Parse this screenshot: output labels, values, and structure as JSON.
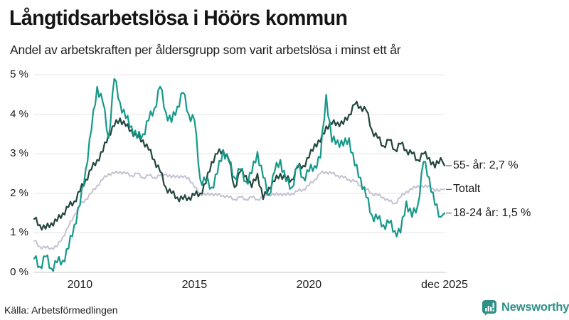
{
  "header": {
    "title": "Långtidsarbetslösa i Höörs kommun",
    "subtitle": "Andel av arbetskraften per åldersgrupp som varit arbetslösa i minst ett år"
  },
  "source": {
    "label": "Källa: Arbetsförmedlingen"
  },
  "branding": {
    "name": "Newsworthy",
    "color": "#2f8f87"
  },
  "chart_data": {
    "type": "line",
    "title": "Långtidsarbetslösa i Höörs kommun",
    "subtitle": "Andel av arbetskraften per åldersgrupp som varit arbetslösa i minst ett år",
    "unit": "%",
    "xlim": [
      2008,
      2025.92
    ],
    "ylim": [
      0,
      5
    ],
    "grid": true,
    "legend_position": "right-end-labels",
    "grid_color": "#e3e3e8",
    "axis_color": "#c6c6cc",
    "y_ticks": [
      {
        "value": 0,
        "label": "0 %"
      },
      {
        "value": 1,
        "label": "1 %"
      },
      {
        "value": 2,
        "label": "2 %"
      },
      {
        "value": 3,
        "label": "3 %"
      },
      {
        "value": 4,
        "label": "4 %"
      },
      {
        "value": 5,
        "label": "5 %"
      }
    ],
    "x_ticks": [
      {
        "t": 2010,
        "label": "2010"
      },
      {
        "t": 2015,
        "label": "2015"
      },
      {
        "t": 2020,
        "label": "2020"
      },
      {
        "t": 2025.92,
        "label": "dec 2025"
      }
    ],
    "x": [
      2008,
      2008.25,
      2008.5,
      2008.75,
      2009,
      2009.25,
      2009.5,
      2009.75,
      2010,
      2010.25,
      2010.5,
      2010.75,
      2011,
      2011.25,
      2011.5,
      2011.75,
      2012,
      2012.25,
      2012.5,
      2012.75,
      2013,
      2013.25,
      2013.5,
      2013.75,
      2014,
      2014.25,
      2014.5,
      2014.75,
      2015,
      2015.25,
      2015.5,
      2015.75,
      2016,
      2016.25,
      2016.5,
      2016.75,
      2017,
      2017.25,
      2017.5,
      2017.75,
      2018,
      2018.25,
      2018.5,
      2018.75,
      2019,
      2019.25,
      2019.5,
      2019.75,
      2020,
      2020.25,
      2020.5,
      2020.75,
      2021,
      2021.25,
      2021.5,
      2021.75,
      2022,
      2022.25,
      2022.5,
      2022.75,
      2023,
      2023.25,
      2023.5,
      2023.75,
      2024,
      2024.25,
      2024.5,
      2024.75,
      2025,
      2025.25,
      2025.5,
      2025.75,
      2025.92
    ],
    "series": [
      {
        "name": "55- år",
        "label": "55- år: 2,7 %",
        "end_value_label": "2,7 %",
        "color": "#22463d",
        "width": 2.2,
        "zindex": 2,
        "volatility_hint": 0.09,
        "values": [
          1.35,
          1.2,
          1.1,
          1.25,
          1.3,
          1.5,
          1.65,
          1.8,
          2.05,
          2.35,
          2.6,
          2.85,
          3.05,
          3.5,
          3.7,
          3.9,
          3.7,
          3.6,
          3.4,
          3.35,
          3.1,
          2.85,
          2.55,
          2.15,
          2.0,
          1.9,
          1.85,
          1.9,
          1.95,
          2.0,
          2.25,
          2.8,
          3.0,
          3.1,
          2.85,
          2.15,
          2.55,
          2.45,
          2.15,
          2.5,
          1.85,
          2.15,
          2.3,
          2.5,
          2.35,
          2.35,
          2.65,
          2.7,
          2.9,
          3.25,
          3.3,
          3.7,
          3.75,
          3.8,
          3.75,
          4.0,
          4.25,
          4.2,
          4.1,
          3.6,
          3.4,
          3.2,
          3.35,
          3.1,
          3.25,
          3.1,
          3.0,
          2.85,
          3.0,
          2.9,
          2.65,
          2.9,
          2.7
        ]
      },
      {
        "name": "Totalt",
        "label": "Totalt",
        "end_value_label": "2,1 %",
        "color": "#c5c2d2",
        "width": 2,
        "zindex": 1,
        "volatility_hint": 0.045,
        "values": [
          0.8,
          0.65,
          0.62,
          0.62,
          0.65,
          0.9,
          1.15,
          1.45,
          1.7,
          1.85,
          2.0,
          2.2,
          2.35,
          2.5,
          2.5,
          2.55,
          2.5,
          2.45,
          2.5,
          2.4,
          2.45,
          2.4,
          2.45,
          2.5,
          2.4,
          2.45,
          2.4,
          2.4,
          2.15,
          2.0,
          1.95,
          2.0,
          1.95,
          1.95,
          1.9,
          1.85,
          1.9,
          1.85,
          1.9,
          1.85,
          1.9,
          2.0,
          1.95,
          2.0,
          1.95,
          2.0,
          2.05,
          2.1,
          2.2,
          2.35,
          2.5,
          2.55,
          2.5,
          2.45,
          2.4,
          2.35,
          2.3,
          2.2,
          2.1,
          2.0,
          1.95,
          1.9,
          1.8,
          1.75,
          1.9,
          2.05,
          2.1,
          2.2,
          2.15,
          2.2,
          2.05,
          2.1,
          2.1
        ]
      },
      {
        "name": "18-24 år",
        "label": "18-24 år: 1,5 %",
        "end_value_label": "1,5 %",
        "color": "#17998a",
        "width": 2.2,
        "zindex": 3,
        "volatility_hint": 0.13,
        "values": [
          0.35,
          0.15,
          0.4,
          0.1,
          0.25,
          0.3,
          0.6,
          1.2,
          1.7,
          2.6,
          3.6,
          4.7,
          4.3,
          3.4,
          4.9,
          4.3,
          3.9,
          3.7,
          3.4,
          3.5,
          3.85,
          4.15,
          4.7,
          4.05,
          3.8,
          4.2,
          4.55,
          4.0,
          3.85,
          2.35,
          2.3,
          2.15,
          2.5,
          3.1,
          2.8,
          2.4,
          2.6,
          2.3,
          2.5,
          3.05,
          2.4,
          1.95,
          2.55,
          2.85,
          2.3,
          2.15,
          2.7,
          2.4,
          2.55,
          2.7,
          2.9,
          4.5,
          3.3,
          3.35,
          3.2,
          3.4,
          2.7,
          2.4,
          1.9,
          1.45,
          1.35,
          1.2,
          1.25,
          1.05,
          1.0,
          1.8,
          1.4,
          1.7,
          2.8,
          2.4,
          1.7,
          1.4,
          1.5
        ]
      }
    ]
  }
}
